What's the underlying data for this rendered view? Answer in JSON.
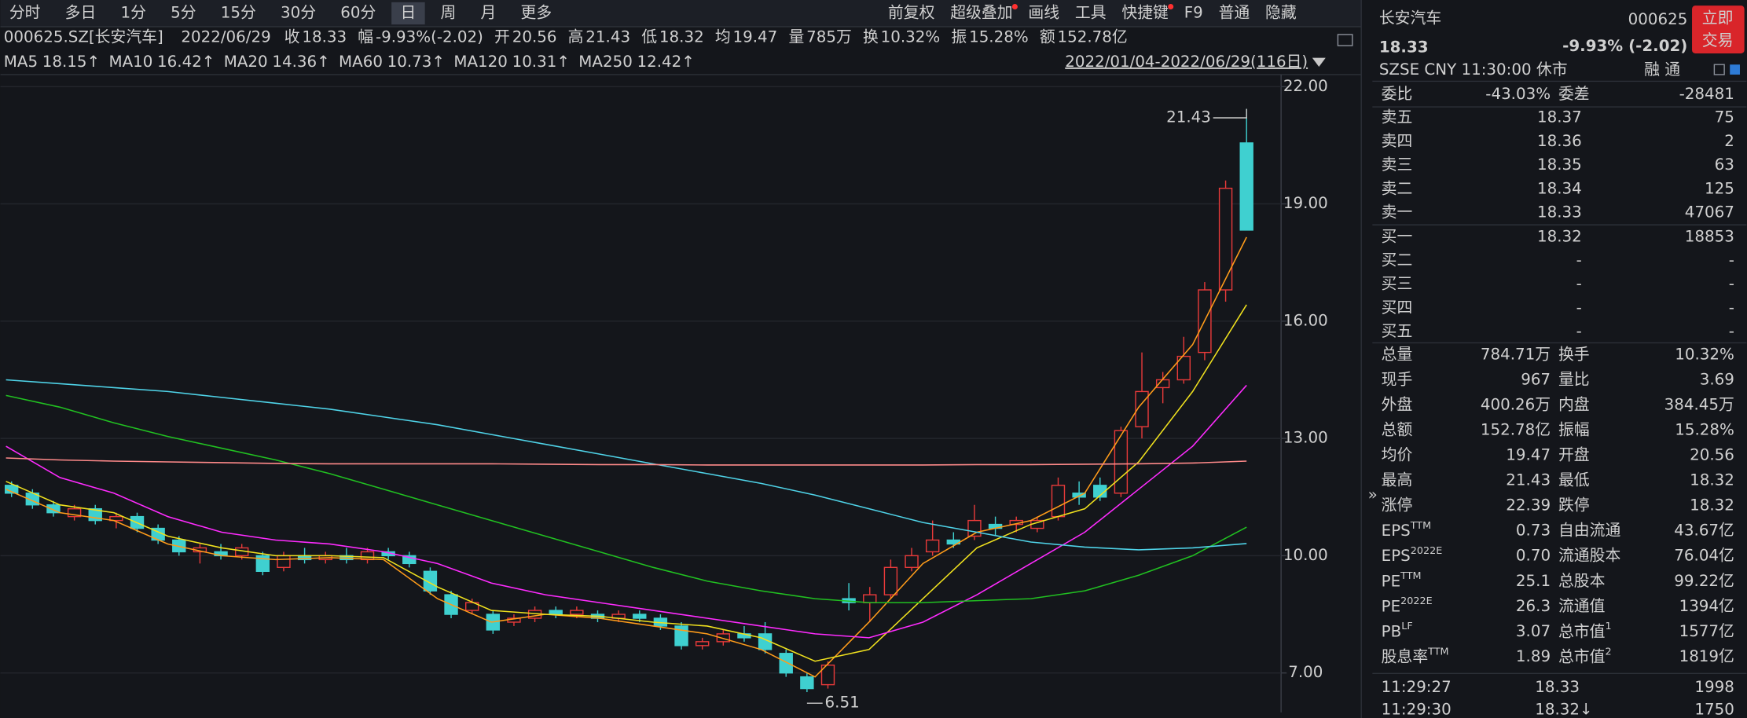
{
  "toolbar": {
    "tabs": [
      "分时",
      "多日",
      "1分",
      "5分",
      "15分",
      "30分",
      "60分",
      "日",
      "周",
      "月",
      "更多"
    ],
    "active": "日",
    "tools": [
      {
        "label": "前复权"
      },
      {
        "label": "超级叠加",
        "dot": true
      },
      {
        "label": "画线"
      },
      {
        "label": "工具"
      },
      {
        "label": "快捷键",
        "dot": true
      },
      {
        "label": "F9"
      },
      {
        "label": "普通"
      },
      {
        "label": "隐藏"
      }
    ]
  },
  "info_bar": {
    "symbol": "000625.SZ[长安汽车]",
    "date": "2022/06/29",
    "items": [
      {
        "label": "收",
        "value": "18.33",
        "tone": "down"
      },
      {
        "label": "幅",
        "value": "-9.93%(-2.02)",
        "tone": "down"
      },
      {
        "label": "开",
        "value": "20.56",
        "tone": "up"
      },
      {
        "label": "高",
        "value": "21.43",
        "tone": "up"
      },
      {
        "label": "低",
        "value": "18.32",
        "tone": "down"
      },
      {
        "label": "均",
        "value": "19.47",
        "tone": "down"
      },
      {
        "label": "量",
        "value": "785万",
        "tone": "flat"
      },
      {
        "label": "换",
        "value": "10.32%",
        "tone": "flat"
      },
      {
        "label": "振",
        "value": "15.28%",
        "tone": "flat"
      },
      {
        "label": "额",
        "value": "152.78亿",
        "tone": "flat"
      }
    ]
  },
  "chart_data": {
    "type": "candlestick",
    "range_label": "2022/01/04-2022/06/29(116日)",
    "ylim": [
      5.99,
      22.28
    ],
    "yticks": [
      {
        "value": 7,
        "label": "7.00"
      },
      {
        "value": 10,
        "label": "10.00"
      },
      {
        "value": 13,
        "label": "13.00"
      },
      {
        "value": 16,
        "label": "16.00"
      },
      {
        "value": 19,
        "label": "19.00"
      },
      {
        "value": 22,
        "label": "22.00"
      }
    ],
    "grid": true,
    "up_color": "#e83a3a",
    "down_color": "#3fd0d0",
    "high_label": "21.43",
    "low_label": "6.51",
    "ohlc": [
      [
        11.8,
        11.9,
        11.5,
        11.6
      ],
      [
        11.6,
        11.7,
        11.2,
        11.3
      ],
      [
        11.3,
        11.4,
        11.0,
        11.1
      ],
      [
        11.0,
        11.3,
        10.9,
        11.2
      ],
      [
        11.2,
        11.3,
        10.8,
        10.9
      ],
      [
        10.9,
        11.1,
        10.7,
        11.0
      ],
      [
        11.0,
        11.1,
        10.6,
        10.7
      ],
      [
        10.7,
        10.8,
        10.3,
        10.4
      ],
      [
        10.4,
        10.5,
        10.0,
        10.1
      ],
      [
        10.1,
        10.3,
        9.8,
        10.2
      ],
      [
        10.1,
        10.3,
        9.9,
        10.0
      ],
      [
        10.0,
        10.3,
        9.9,
        10.2
      ],
      [
        10.0,
        10.1,
        9.5,
        9.6
      ],
      [
        9.7,
        10.1,
        9.6,
        10.0
      ],
      [
        10.0,
        10.2,
        9.8,
        9.9
      ],
      [
        9.9,
        10.1,
        9.8,
        10.0
      ],
      [
        10.0,
        10.2,
        9.8,
        9.9
      ],
      [
        9.9,
        10.2,
        9.8,
        10.1
      ],
      [
        10.1,
        10.2,
        9.9,
        10.0
      ],
      [
        10.0,
        10.1,
        9.7,
        9.8
      ],
      [
        9.6,
        9.7,
        9.0,
        9.1
      ],
      [
        9.0,
        9.1,
        8.4,
        8.5
      ],
      [
        8.6,
        8.9,
        8.5,
        8.8
      ],
      [
        8.5,
        8.6,
        8.0,
        8.1
      ],
      [
        8.3,
        8.5,
        8.2,
        8.4
      ],
      [
        8.4,
        8.7,
        8.3,
        8.6
      ],
      [
        8.6,
        8.7,
        8.4,
        8.5
      ],
      [
        8.5,
        8.7,
        8.4,
        8.6
      ],
      [
        8.5,
        8.6,
        8.3,
        8.4
      ],
      [
        8.4,
        8.6,
        8.3,
        8.5
      ],
      [
        8.5,
        8.6,
        8.3,
        8.4
      ],
      [
        8.4,
        8.5,
        8.1,
        8.2
      ],
      [
        8.2,
        8.3,
        7.6,
        7.7
      ],
      [
        7.7,
        7.9,
        7.6,
        7.8
      ],
      [
        7.8,
        8.1,
        7.7,
        8.0
      ],
      [
        8.0,
        8.2,
        7.8,
        7.9
      ],
      [
        8.0,
        8.3,
        7.5,
        7.6
      ],
      [
        7.5,
        7.6,
        6.9,
        7.0
      ],
      [
        6.9,
        7.0,
        6.51,
        6.6
      ],
      [
        6.7,
        7.3,
        6.6,
        7.2
      ],
      [
        8.9,
        9.3,
        8.6,
        8.8
      ],
      [
        8.8,
        9.2,
        8.3,
        9.0
      ],
      [
        9.0,
        9.9,
        8.9,
        9.7
      ],
      [
        9.7,
        10.2,
        9.6,
        10.0
      ],
      [
        10.1,
        10.9,
        10.0,
        10.4
      ],
      [
        10.4,
        10.6,
        10.2,
        10.3
      ],
      [
        10.5,
        11.3,
        10.4,
        10.9
      ],
      [
        10.8,
        11.0,
        10.5,
        10.7
      ],
      [
        10.8,
        11.0,
        10.6,
        10.9
      ],
      [
        10.7,
        11.0,
        10.6,
        10.9
      ],
      [
        11.0,
        12.0,
        10.9,
        11.8
      ],
      [
        11.6,
        11.9,
        11.3,
        11.5
      ],
      [
        11.8,
        12.0,
        11.4,
        11.5
      ],
      [
        11.6,
        13.3,
        11.5,
        13.2
      ],
      [
        13.3,
        15.2,
        13.0,
        14.2
      ],
      [
        14.3,
        14.7,
        13.9,
        14.5
      ],
      [
        14.5,
        15.6,
        14.4,
        15.1
      ],
      [
        15.2,
        17.0,
        15.0,
        16.8
      ],
      [
        16.8,
        19.6,
        16.5,
        19.4
      ],
      [
        20.56,
        21.43,
        18.32,
        18.33
      ]
    ],
    "series": [
      {
        "name": "MA5",
        "legend_value": "18.15↑",
        "color": "#ff9c1a",
        "values": [
          11.7,
          11.1,
          10.9,
          10.3,
          10.0,
          9.9,
          9.95,
          9.9,
          8.9,
          8.3,
          8.5,
          8.4,
          8.2,
          8.0,
          7.6,
          6.9,
          8.3,
          9.8,
          10.6,
          10.9,
          11.6,
          13.8,
          15.4,
          18.15
        ]
      },
      {
        "name": "MA10",
        "legend_value": "16.42↑",
        "color": "#f0e11e",
        "values": [
          11.9,
          11.3,
          11.1,
          10.5,
          10.2,
          10.0,
          10.0,
          9.95,
          9.2,
          8.6,
          8.5,
          8.45,
          8.3,
          8.2,
          7.9,
          7.3,
          7.6,
          8.9,
          10.2,
          10.8,
          11.2,
          12.4,
          14.2,
          16.42
        ]
      },
      {
        "name": "MA20",
        "legend_value": "14.36↑",
        "color": "#ff2bff",
        "values": [
          12.8,
          12.0,
          11.6,
          11.0,
          10.6,
          10.4,
          10.3,
          10.1,
          9.8,
          9.3,
          9.0,
          8.8,
          8.6,
          8.4,
          8.2,
          8.0,
          7.9,
          8.3,
          9.0,
          9.8,
          10.6,
          11.7,
          12.8,
          14.36
        ]
      },
      {
        "name": "MA60",
        "legend_value": "10.73↑",
        "color": "#21c021",
        "values": [
          14.1,
          13.8,
          13.4,
          13.05,
          12.75,
          12.45,
          12.1,
          11.7,
          11.3,
          10.9,
          10.5,
          10.1,
          9.7,
          9.35,
          9.1,
          8.9,
          8.8,
          8.8,
          8.85,
          8.9,
          9.1,
          9.5,
          10.0,
          10.73
        ]
      },
      {
        "name": "MA120",
        "legend_value": "10.31↑",
        "color": "#4fd3e8",
        "values": [
          14.5,
          14.4,
          14.3,
          14.2,
          14.05,
          13.9,
          13.75,
          13.55,
          13.35,
          13.1,
          12.85,
          12.6,
          12.35,
          12.1,
          11.85,
          11.55,
          11.2,
          10.85,
          10.6,
          10.35,
          10.22,
          10.15,
          10.2,
          10.31
        ]
      },
      {
        "name": "MA250",
        "legend_value": "12.42↑",
        "color": "#ff8a8a",
        "values": [
          12.5,
          12.45,
          12.42,
          12.4,
          12.38,
          12.36,
          12.35,
          12.35,
          12.35,
          12.35,
          12.34,
          12.33,
          12.33,
          12.32,
          12.32,
          12.32,
          12.32,
          12.32,
          12.33,
          12.33,
          12.34,
          12.35,
          12.37,
          12.42
        ]
      }
    ]
  },
  "quote": {
    "name": "长安汽车",
    "code": "000625",
    "button": [
      "立即",
      "交易"
    ],
    "price": "18.33",
    "change": "-9.93% (-2.02)",
    "status": "SZSE  CNY  11:30:00  休市",
    "flags": "融 通",
    "ratio": {
      "label": "委比",
      "value": "-43.03%",
      "label2": "委差",
      "value2": "-28481"
    },
    "sells": [
      [
        "卖五",
        "18.37",
        "75"
      ],
      [
        "卖四",
        "18.36",
        "2"
      ],
      [
        "卖三",
        "18.35",
        "63"
      ],
      [
        "卖二",
        "18.34",
        "125"
      ],
      [
        "卖一",
        "18.33",
        "47067"
      ]
    ],
    "buys": [
      [
        "买一",
        "18.32",
        "18853"
      ],
      [
        "买二",
        "-",
        "-"
      ],
      [
        "买三",
        "-",
        "-"
      ],
      [
        "买四",
        "-",
        "-"
      ],
      [
        "买五",
        "-",
        "-"
      ]
    ],
    "stats": [
      {
        "l1": "总量",
        "v1": "784.71万",
        "t1": "flat",
        "l2": "换手",
        "v2": "10.32%",
        "t2": "flat"
      },
      {
        "l1": "现手",
        "v1": "967",
        "t1": "flat",
        "l2": "量比",
        "v2": "3.69",
        "t2": "flat"
      },
      {
        "l1": "外盘",
        "v1": "400.26万",
        "t1": "up",
        "l2": "内盘",
        "v2": "384.45万",
        "t2": "down"
      },
      {
        "l1": "总额",
        "v1": "152.78亿",
        "t1": "flat",
        "l2": "振幅",
        "v2": "15.28%",
        "t2": "flat"
      },
      {
        "l1": "均价",
        "v1": "19.47",
        "t1": "down",
        "l2": "开盘",
        "v2": "20.56",
        "t2": "up"
      },
      {
        "l1": "最高",
        "v1": "21.43",
        "t1": "up",
        "l2": "最低",
        "v2": "18.32",
        "t2": "down"
      },
      {
        "l1": "涨停",
        "v1": "22.39",
        "t1": "up",
        "l2": "跌停",
        "v2": "18.32",
        "t2": "down"
      },
      {
        "l1": {
          "text": "EPS",
          "sup": "TTM"
        },
        "v1": "0.73",
        "t1": "flat",
        "l2": "自由流通",
        "v2": "43.67亿",
        "t2": "flat"
      },
      {
        "l1": {
          "text": "EPS",
          "sup": "2022E"
        },
        "v1": "0.70",
        "t1": "flat",
        "l2": "流通股本",
        "v2": "76.04亿",
        "t2": "flat"
      },
      {
        "l1": {
          "text": "PE",
          "sup": "TTM"
        },
        "v1": "25.1",
        "t1": "flat",
        "l2": "总股本",
        "v2": "99.22亿",
        "t2": "flat"
      },
      {
        "l1": {
          "text": "PE",
          "sup": "2022E"
        },
        "v1": "26.3",
        "t1": "flat",
        "l2": "流通值",
        "v2": "1394亿",
        "t2": "flat"
      },
      {
        "l1": {
          "text": "PB",
          "sup": "LF"
        },
        "v1": "3.07",
        "t1": "flat",
        "l2": {
          "text": "总市值",
          "sup": "1"
        },
        "v2": "1577亿",
        "t2": "flat"
      },
      {
        "l1": {
          "text": "股息率",
          "sup": "TTM"
        },
        "v1": "1.89",
        "t1": "flat",
        "l2": {
          "text": "总市值",
          "sup": "2"
        },
        "v2": "1819亿",
        "t2": "flat"
      }
    ],
    "ticks": [
      {
        "time": "11:29:27",
        "price": "18.33",
        "arrow": "",
        "volume": "1998",
        "tone": "up"
      },
      {
        "time": "11:29:30",
        "price": "18.32",
        "arrow": "↓",
        "volume": "1750",
        "tone": "down"
      }
    ]
  }
}
